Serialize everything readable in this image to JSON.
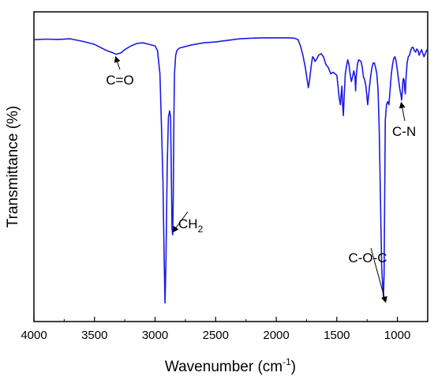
{
  "chart_data": {
    "type": "line",
    "title": "",
    "xlabel": "Wavenumber (cm",
    "xlabel_superscript": "-1",
    "xlabel_suffix": ")",
    "ylabel": "Transmittance (%)",
    "xlim": [
      4000,
      750
    ],
    "x_reversed": true,
    "ylim": [
      0,
      100
    ],
    "y_tick_labels_shown": false,
    "grid": false,
    "legend": "none",
    "xticks": [
      4000,
      3500,
      3000,
      2500,
      2000,
      1500,
      1000
    ],
    "xtick_labels": [
      "4000",
      "3500",
      "3000",
      "2500",
      "2000",
      "1500",
      "1000"
    ],
    "series": [
      {
        "color": "#1a1ae6",
        "points": [
          [
            4000,
            91.0
          ],
          [
            3900,
            91.2
          ],
          [
            3800,
            91.1
          ],
          [
            3700,
            91.3
          ],
          [
            3600,
            90.5
          ],
          [
            3500,
            89.5
          ],
          [
            3450,
            88.5
          ],
          [
            3400,
            87.5
          ],
          [
            3350,
            86.8
          ],
          [
            3320,
            86.3
          ],
          [
            3280,
            86.8
          ],
          [
            3250,
            87.8
          ],
          [
            3200,
            89.0
          ],
          [
            3150,
            89.8
          ],
          [
            3100,
            90.0
          ],
          [
            3050,
            89.5
          ],
          [
            3000,
            89.0
          ],
          [
            2980,
            87.5
          ],
          [
            2960,
            80.0
          ],
          [
            2945,
            60.0
          ],
          [
            2935,
            45.0
          ],
          [
            2925,
            20.0
          ],
          [
            2918,
            6.0
          ],
          [
            2910,
            20.0
          ],
          [
            2900,
            50.0
          ],
          [
            2890,
            66.0
          ],
          [
            2880,
            68.0
          ],
          [
            2872,
            66.0
          ],
          [
            2865,
            45.0
          ],
          [
            2860,
            30.0
          ],
          [
            2855,
            28.0
          ],
          [
            2850,
            40.0
          ],
          [
            2845,
            65.0
          ],
          [
            2840,
            80.0
          ],
          [
            2830,
            86.0
          ],
          [
            2820,
            87.5
          ],
          [
            2800,
            88.3
          ],
          [
            2700,
            89.3
          ],
          [
            2600,
            90.0
          ],
          [
            2500,
            90.3
          ],
          [
            2400,
            90.8
          ],
          [
            2300,
            91.3
          ],
          [
            2200,
            91.5
          ],
          [
            2100,
            91.6
          ],
          [
            2000,
            91.6
          ],
          [
            1900,
            91.6
          ],
          [
            1850,
            91.5
          ],
          [
            1820,
            91.0
          ],
          [
            1800,
            89.0
          ],
          [
            1780,
            86.0
          ],
          [
            1760,
            82.0
          ],
          [
            1745,
            78.0
          ],
          [
            1735,
            75.5
          ],
          [
            1725,
            78.0
          ],
          [
            1710,
            83.0
          ],
          [
            1700,
            85.5
          ],
          [
            1690,
            85.0
          ],
          [
            1680,
            84.0
          ],
          [
            1670,
            84.5
          ],
          [
            1650,
            86.0
          ],
          [
            1630,
            86.5
          ],
          [
            1610,
            85.5
          ],
          [
            1590,
            83.0
          ],
          [
            1570,
            82.0
          ],
          [
            1550,
            80.0
          ],
          [
            1530,
            80.5
          ],
          [
            1515,
            80.0
          ],
          [
            1500,
            79.5
          ],
          [
            1490,
            76.0
          ],
          [
            1480,
            72.0
          ],
          [
            1470,
            70.0
          ],
          [
            1465,
            73.0
          ],
          [
            1458,
            76.0
          ],
          [
            1452,
            70.0
          ],
          [
            1446,
            66.5
          ],
          [
            1440,
            72.0
          ],
          [
            1430,
            80.0
          ],
          [
            1420,
            82.5
          ],
          [
            1410,
            84.5
          ],
          [
            1400,
            83.0
          ],
          [
            1390,
            80.0
          ],
          [
            1380,
            77.5
          ],
          [
            1370,
            79.0
          ],
          [
            1360,
            81.0
          ],
          [
            1350,
            79.0
          ],
          [
            1345,
            74.5
          ],
          [
            1340,
            79.0
          ],
          [
            1330,
            83.0
          ],
          [
            1320,
            84.5
          ],
          [
            1300,
            84.0
          ],
          [
            1290,
            82.0
          ],
          [
            1280,
            79.0
          ],
          [
            1270,
            78.0
          ],
          [
            1260,
            76.0
          ],
          [
            1250,
            72.0
          ],
          [
            1245,
            70.0
          ],
          [
            1240,
            72.0
          ],
          [
            1230,
            76.0
          ],
          [
            1220,
            79.5
          ],
          [
            1210,
            82.0
          ],
          [
            1200,
            83.5
          ],
          [
            1190,
            83.5
          ],
          [
            1180,
            82.0
          ],
          [
            1170,
            80.0
          ],
          [
            1160,
            75.0
          ],
          [
            1150,
            62.0
          ],
          [
            1140,
            40.0
          ],
          [
            1130,
            18.0
          ],
          [
            1122,
            12.0
          ],
          [
            1115,
            8.0
          ],
          [
            1110,
            15.0
          ],
          [
            1105,
            40.0
          ],
          [
            1100,
            65.0
          ],
          [
            1090,
            70.0
          ],
          [
            1080,
            71.0
          ],
          [
            1070,
            70.0
          ],
          [
            1060,
            75.0
          ],
          [
            1050,
            80.0
          ],
          [
            1040,
            83.0
          ],
          [
            1030,
            85.0
          ],
          [
            1020,
            85.5
          ],
          [
            1010,
            84.0
          ],
          [
            1000,
            81.0
          ],
          [
            990,
            78.0
          ],
          [
            980,
            75.0
          ],
          [
            970,
            73.0
          ],
          [
            965,
            71.5
          ],
          [
            960,
            74.0
          ],
          [
            955,
            77.5
          ],
          [
            950,
            78.5
          ],
          [
            945,
            78.0
          ],
          [
            940,
            75.0
          ],
          [
            935,
            73.5
          ],
          [
            930,
            78.0
          ],
          [
            920,
            83.5
          ],
          [
            910,
            85.5
          ],
          [
            900,
            86.0
          ],
          [
            890,
            87.5
          ],
          [
            880,
            88.5
          ],
          [
            870,
            88.5
          ],
          [
            860,
            87.5
          ],
          [
            850,
            87.0
          ],
          [
            840,
            88.0
          ],
          [
            830,
            87.5
          ],
          [
            820,
            86.0
          ],
          [
            810,
            87.0
          ],
          [
            800,
            87.8
          ],
          [
            790,
            86.5
          ],
          [
            780,
            85.5
          ],
          [
            770,
            86.5
          ],
          [
            760,
            87.5
          ],
          [
            750,
            88.0
          ]
        ]
      }
    ],
    "annotations": [
      {
        "id": "co",
        "label": "C=O",
        "x": 3320,
        "y": 86.3
      },
      {
        "id": "ch2",
        "label": "CH",
        "subscript": "2",
        "x": 2855,
        "y": 28.0
      },
      {
        "id": "coc",
        "label": "C-O-C",
        "x": 1115,
        "y": 8.0
      },
      {
        "id": "cn",
        "label": "C-N",
        "x": 965,
        "y": 71.5
      }
    ]
  }
}
